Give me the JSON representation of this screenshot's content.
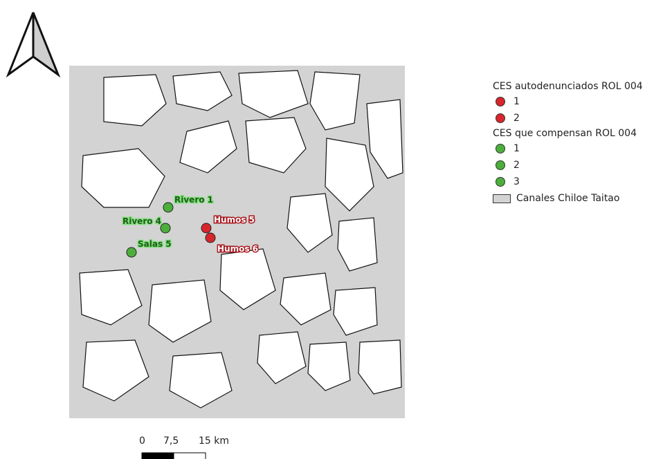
{
  "map": {
    "north_arrow": "north-arrow-icon",
    "water_color": "#d3d3d3",
    "points": [
      {
        "label": "Rivero 1",
        "group": "CES que compensan ROL 004",
        "color": "#4caf3c"
      },
      {
        "label": "Rivero 4",
        "group": "CES que compensan ROL 004",
        "color": "#4caf3c"
      },
      {
        "label": "Salas 5",
        "group": "CES que compensan ROL 004",
        "color": "#4caf3c"
      },
      {
        "label": "Humos 5",
        "group": "CES autodenunciados ROL 004",
        "color": "#d7262c"
      },
      {
        "label": "Humos 6",
        "group": "CES autodenunciados ROL 004",
        "color": "#d7262c"
      }
    ]
  },
  "legend": {
    "group1_title": "CES autodenunciados ROL 004",
    "group1_items": [
      "1",
      "2"
    ],
    "group1_color": "#d7262c",
    "group2_title": "CES que compensan ROL 004",
    "group2_items": [
      "1",
      "2",
      "3"
    ],
    "group2_color": "#4caf3c",
    "layer_label": "Canales Chiloe Taitao",
    "layer_color": "#d3d3d3"
  },
  "scalebar": {
    "labels": [
      "0",
      "7,5",
      "15 km"
    ]
  }
}
